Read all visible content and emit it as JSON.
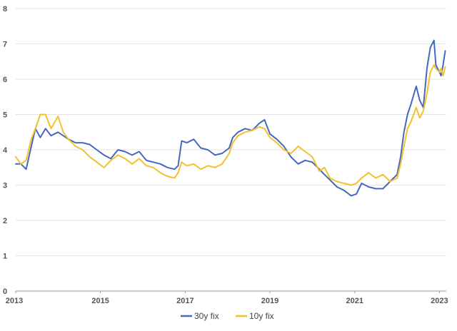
{
  "chart_data": {
    "type": "line",
    "title": "",
    "xlabel": "",
    "ylabel": "",
    "ylim": [
      0,
      8
    ],
    "xlim": [
      "2013-01-01",
      "2023-03-01"
    ],
    "grid": true,
    "legend_position": "bottom",
    "x_tick_labels": [
      "2013",
      "2015",
      "2017",
      "2019",
      "2021",
      "2023"
    ],
    "y_tick_labels": [
      "0",
      "1",
      "2",
      "3",
      "4",
      "5",
      "6",
      "7",
      "8"
    ],
    "series": [
      {
        "name": "30y fix",
        "color": "#4468c0",
        "points": [
          [
            "2013-01-01",
            3.6
          ],
          [
            "2013-02-15",
            3.6
          ],
          [
            "2013-04-01",
            3.45
          ],
          [
            "2013-05-15",
            4.1
          ],
          [
            "2013-06-20",
            4.6
          ],
          [
            "2013-08-01",
            4.35
          ],
          [
            "2013-09-15",
            4.6
          ],
          [
            "2013-11-01",
            4.4
          ],
          [
            "2014-01-01",
            4.5
          ],
          [
            "2014-02-15",
            4.4
          ],
          [
            "2014-04-01",
            4.3
          ],
          [
            "2014-06-01",
            4.2
          ],
          [
            "2014-08-01",
            4.2
          ],
          [
            "2014-10-01",
            4.15
          ],
          [
            "2014-12-01",
            4.0
          ],
          [
            "2015-02-01",
            3.85
          ],
          [
            "2015-04-01",
            3.75
          ],
          [
            "2015-06-01",
            4.0
          ],
          [
            "2015-08-01",
            3.95
          ],
          [
            "2015-10-01",
            3.85
          ],
          [
            "2015-12-01",
            3.95
          ],
          [
            "2016-02-01",
            3.7
          ],
          [
            "2016-04-01",
            3.65
          ],
          [
            "2016-06-01",
            3.6
          ],
          [
            "2016-08-01",
            3.5
          ],
          [
            "2016-10-01",
            3.45
          ],
          [
            "2016-11-01",
            3.55
          ],
          [
            "2016-12-01",
            4.25
          ],
          [
            "2017-01-15",
            4.2
          ],
          [
            "2017-03-15",
            4.3
          ],
          [
            "2017-05-15",
            4.05
          ],
          [
            "2017-07-15",
            4.0
          ],
          [
            "2017-09-15",
            3.85
          ],
          [
            "2017-11-15",
            3.9
          ],
          [
            "2018-01-15",
            4.05
          ],
          [
            "2018-02-15",
            4.35
          ],
          [
            "2018-04-01",
            4.5
          ],
          [
            "2018-06-01",
            4.6
          ],
          [
            "2018-08-01",
            4.55
          ],
          [
            "2018-10-01",
            4.75
          ],
          [
            "2018-11-15",
            4.85
          ],
          [
            "2019-01-01",
            4.45
          ],
          [
            "2019-03-01",
            4.3
          ],
          [
            "2019-05-01",
            4.1
          ],
          [
            "2019-07-01",
            3.8
          ],
          [
            "2019-09-01",
            3.6
          ],
          [
            "2019-11-01",
            3.7
          ],
          [
            "2020-01-01",
            3.65
          ],
          [
            "2020-03-01",
            3.45
          ],
          [
            "2020-04-15",
            3.3
          ],
          [
            "2020-06-01",
            3.15
          ],
          [
            "2020-08-01",
            2.95
          ],
          [
            "2020-10-01",
            2.85
          ],
          [
            "2020-12-01",
            2.7
          ],
          [
            "2021-01-15",
            2.75
          ],
          [
            "2021-03-01",
            3.05
          ],
          [
            "2021-05-01",
            2.95
          ],
          [
            "2021-07-01",
            2.9
          ],
          [
            "2021-09-01",
            2.9
          ],
          [
            "2021-11-01",
            3.1
          ],
          [
            "2022-01-01",
            3.3
          ],
          [
            "2022-02-01",
            3.8
          ],
          [
            "2022-03-01",
            4.5
          ],
          [
            "2022-04-01",
            5.0
          ],
          [
            "2022-05-01",
            5.3
          ],
          [
            "2022-06-15",
            5.8
          ],
          [
            "2022-07-15",
            5.4
          ],
          [
            "2022-08-15",
            5.2
          ],
          [
            "2022-09-15",
            6.3
          ],
          [
            "2022-10-15",
            6.9
          ],
          [
            "2022-11-15",
            7.1
          ],
          [
            "2022-12-01",
            6.4
          ],
          [
            "2023-01-01",
            6.2
          ],
          [
            "2023-01-15",
            6.1
          ],
          [
            "2023-02-01",
            6.4
          ],
          [
            "2023-02-20",
            6.8
          ]
        ]
      },
      {
        "name": "10y fix",
        "color": "#f2c12e",
        "points": [
          [
            "2013-01-01",
            3.8
          ],
          [
            "2013-02-15",
            3.6
          ],
          [
            "2013-04-01",
            3.7
          ],
          [
            "2013-05-15",
            4.3
          ],
          [
            "2013-06-20",
            4.6
          ],
          [
            "2013-08-01",
            5.0
          ],
          [
            "2013-09-15",
            5.0
          ],
          [
            "2013-11-01",
            4.6
          ],
          [
            "2014-01-01",
            4.95
          ],
          [
            "2014-02-15",
            4.5
          ],
          [
            "2014-04-01",
            4.3
          ],
          [
            "2014-06-01",
            4.1
          ],
          [
            "2014-08-01",
            4.0
          ],
          [
            "2014-10-01",
            3.8
          ],
          [
            "2014-12-01",
            3.65
          ],
          [
            "2015-02-01",
            3.5
          ],
          [
            "2015-04-01",
            3.7
          ],
          [
            "2015-06-01",
            3.85
          ],
          [
            "2015-08-01",
            3.75
          ],
          [
            "2015-10-01",
            3.6
          ],
          [
            "2015-12-01",
            3.75
          ],
          [
            "2016-02-01",
            3.55
          ],
          [
            "2016-04-01",
            3.5
          ],
          [
            "2016-06-01",
            3.35
          ],
          [
            "2016-08-01",
            3.25
          ],
          [
            "2016-10-01",
            3.2
          ],
          [
            "2016-11-01",
            3.35
          ],
          [
            "2016-12-01",
            3.65
          ],
          [
            "2017-01-15",
            3.55
          ],
          [
            "2017-03-15",
            3.6
          ],
          [
            "2017-05-15",
            3.45
          ],
          [
            "2017-07-15",
            3.55
          ],
          [
            "2017-09-15",
            3.5
          ],
          [
            "2017-11-15",
            3.6
          ],
          [
            "2018-01-15",
            3.9
          ],
          [
            "2018-02-15",
            4.2
          ],
          [
            "2018-04-01",
            4.4
          ],
          [
            "2018-06-01",
            4.5
          ],
          [
            "2018-08-01",
            4.55
          ],
          [
            "2018-10-01",
            4.65
          ],
          [
            "2018-11-15",
            4.6
          ],
          [
            "2019-01-01",
            4.35
          ],
          [
            "2019-03-01",
            4.2
          ],
          [
            "2019-05-01",
            4.0
          ],
          [
            "2019-07-01",
            3.9
          ],
          [
            "2019-09-01",
            4.1
          ],
          [
            "2019-11-01",
            3.95
          ],
          [
            "2020-01-01",
            3.8
          ],
          [
            "2020-03-01",
            3.4
          ],
          [
            "2020-04-15",
            3.5
          ],
          [
            "2020-06-01",
            3.2
          ],
          [
            "2020-08-01",
            3.1
          ],
          [
            "2020-10-01",
            3.05
          ],
          [
            "2020-12-01",
            3.0
          ],
          [
            "2021-01-15",
            3.05
          ],
          [
            "2021-03-01",
            3.2
          ],
          [
            "2021-05-01",
            3.35
          ],
          [
            "2021-07-01",
            3.2
          ],
          [
            "2021-09-01",
            3.3
          ],
          [
            "2021-11-01",
            3.1
          ],
          [
            "2022-01-01",
            3.2
          ],
          [
            "2022-02-01",
            3.6
          ],
          [
            "2022-03-01",
            4.1
          ],
          [
            "2022-04-01",
            4.6
          ],
          [
            "2022-05-01",
            4.8
          ],
          [
            "2022-06-15",
            5.2
          ],
          [
            "2022-07-15",
            4.9
          ],
          [
            "2022-08-15",
            5.1
          ],
          [
            "2022-09-15",
            5.6
          ],
          [
            "2022-10-15",
            6.2
          ],
          [
            "2022-11-15",
            6.4
          ],
          [
            "2022-12-01",
            6.3
          ],
          [
            "2023-01-01",
            6.2
          ],
          [
            "2023-01-15",
            6.3
          ],
          [
            "2023-02-01",
            6.1
          ],
          [
            "2023-02-20",
            6.35
          ]
        ]
      }
    ]
  }
}
